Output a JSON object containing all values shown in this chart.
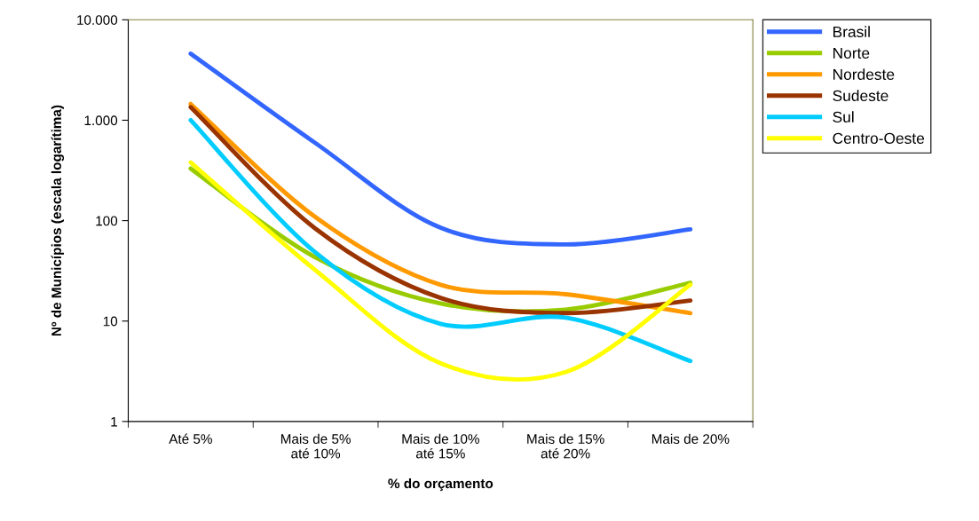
{
  "chart_data": {
    "type": "line",
    "xlabel": "% do orçamento",
    "ylabel": "Nº de Municípios (escala logarítima)",
    "categories": [
      "Até 5%",
      "Mais de 5%\naté 10%",
      "Mais de 10%\naté 15%",
      "Mais de 15%\naté 20%",
      "Mais de 20%"
    ],
    "series": [
      {
        "name": "Brasil",
        "color": "#3366ff",
        "values": [
          4600,
          590,
          85,
          58,
          82
        ]
      },
      {
        "name": "Norte",
        "color": "#99cc00",
        "values": [
          330,
          43,
          15,
          13,
          24
        ]
      },
      {
        "name": "Nordeste",
        "color": "#ff9900",
        "values": [
          1450,
          108,
          23,
          18.5,
          12
        ]
      },
      {
        "name": "Sudeste",
        "color": "#993300",
        "values": [
          1350,
          83,
          17,
          12,
          16
        ]
      },
      {
        "name": "Sul",
        "color": "#00ccff",
        "values": [
          1000,
          48,
          9.4,
          10.8,
          4
        ]
      },
      {
        "name": "Centro-Oeste",
        "color": "#ffff00",
        "values": [
          380,
          32,
          3.8,
          3.1,
          23
        ]
      }
    ],
    "log": "y",
    "ylim": [
      1,
      10000
    ],
    "yticks": [
      {
        "value": 1,
        "label": "1"
      },
      {
        "value": 10,
        "label": "10"
      },
      {
        "value": 100,
        "label": "100"
      },
      {
        "value": 1000,
        "label": "1.000"
      },
      {
        "value": 10000,
        "label": "10.000"
      }
    ],
    "grid": false,
    "legend": "top right",
    "marker": "none",
    "line_style": "solid"
  }
}
